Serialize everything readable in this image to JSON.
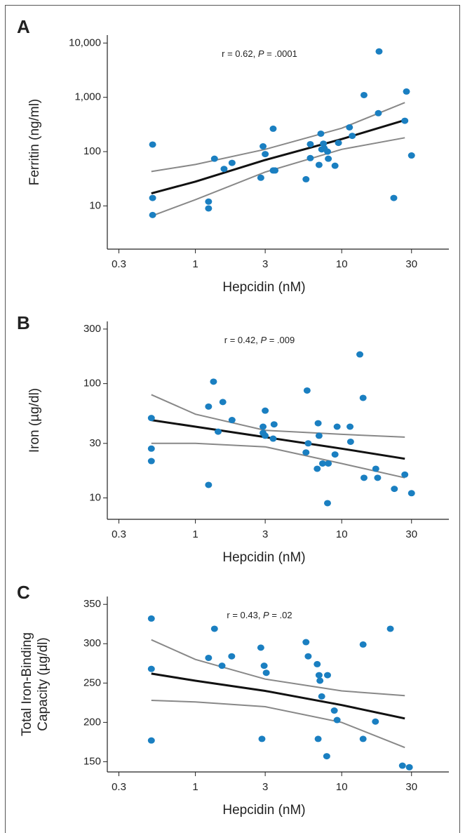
{
  "chart_data": [
    {
      "type": "scatter",
      "panel": "A",
      "annotation": [
        "r = 0.62, ",
        "P",
        " = .0001"
      ],
      "xlabel": "Hepcidin (nM)",
      "ylabel": [
        "Ferritin (ng/ml)"
      ],
      "xlog": true,
      "ylog": true,
      "xlim": [
        0.25,
        54
      ],
      "ylim": [
        1.6,
        14000
      ],
      "xticks": [
        0.3,
        1,
        3,
        10,
        30
      ],
      "yticks": [
        10,
        100,
        {
          "value": 1000,
          "label": "1,000"
        },
        {
          "value": 10000,
          "label": "10,000"
        }
      ],
      "points": {
        "color": "#1a7fc1",
        "x": [
          0.51,
          0.51,
          0.51,
          1.35,
          1.23,
          1.23,
          1.57,
          1.78,
          2.9,
          3,
          3.4,
          3.4,
          3.5,
          2.8,
          5.7,
          6.1,
          6.1,
          7,
          7.2,
          7.3,
          7.5,
          7.6,
          8,
          8.1,
          9,
          9.5,
          11.3,
          11.8,
          14.2,
          18,
          17.8,
          22.7,
          27.7,
          27,
          30
        ],
        "y": [
          135,
          14,
          6.8,
          74,
          12,
          9,
          48,
          62,
          125,
          90,
          264,
          45,
          45,
          33,
          31,
          137,
          76,
          57,
          214,
          110,
          140,
          115,
          100,
          74,
          55,
          145,
          280,
          195,
          1100,
          7000,
          510,
          14,
          1280,
          370,
          85
        ]
      },
      "lines": [
        {
          "color": "#111111",
          "width": 3,
          "x": [
            0.5,
            1,
            3,
            10,
            27
          ],
          "y": [
            17,
            28,
            70,
            170,
            380
          ]
        },
        {
          "color": "#888888",
          "width": 2,
          "x": [
            0.5,
            1,
            3,
            10,
            27
          ],
          "y": [
            43,
            58,
            110,
            270,
            800
          ]
        },
        {
          "color": "#888888",
          "width": 2,
          "x": [
            0.5,
            1,
            3,
            10,
            27
          ],
          "y": [
            6.5,
            13,
            42,
            110,
            180
          ]
        }
      ]
    },
    {
      "type": "scatter",
      "panel": "B",
      "annotation": [
        "r = 0.42, ",
        "P",
        " = .009"
      ],
      "xlabel": "Hepcidin (nM)",
      "ylabel": [
        "Iron (µg/dl)"
      ],
      "xlog": true,
      "ylog": true,
      "xlim": [
        0.25,
        54
      ],
      "ylim": [
        6.5,
        350
      ],
      "xticks": [
        0.3,
        1,
        3,
        10,
        30
      ],
      "yticks": [
        10,
        30,
        100,
        300
      ],
      "points": {
        "color": "#1a7fc1",
        "x": [
          0.5,
          0.5,
          0.5,
          1.33,
          1.23,
          1.54,
          1.78,
          1.43,
          1.23,
          2.9,
          3,
          3.45,
          2.9,
          3,
          3.4,
          5.8,
          5.7,
          5.9,
          6.9,
          7,
          6.8,
          7.4,
          8.1,
          9,
          9.3,
          8,
          11.4,
          11.5,
          13.3,
          14,
          14.2,
          17.1,
          17.6,
          22.9,
          27,
          30
        ],
        "y": [
          50,
          27,
          21,
          104,
          63,
          69,
          48,
          38,
          13,
          42,
          58,
          44,
          37,
          35,
          33,
          87,
          25,
          30,
          45,
          35,
          18,
          20,
          20,
          24,
          42,
          9,
          42,
          31,
          180,
          75,
          15,
          18,
          15,
          12,
          16,
          11
        ]
      },
      "lines": [
        {
          "color": "#111111",
          "width": 3,
          "x": [
            0.5,
            1,
            3,
            10,
            27
          ],
          "y": [
            48,
            42,
            34,
            27,
            22
          ]
        },
        {
          "color": "#888888",
          "width": 2,
          "x": [
            0.5,
            1,
            3,
            10,
            27
          ],
          "y": [
            80,
            54,
            39,
            36,
            34
          ]
        },
        {
          "color": "#888888",
          "width": 2,
          "x": [
            0.5,
            1,
            3,
            10,
            27
          ],
          "y": [
            30,
            30,
            28,
            20,
            15
          ]
        }
      ]
    },
    {
      "type": "scatter",
      "panel": "C",
      "annotation": [
        "r = 0.43, ",
        "P",
        " = .02"
      ],
      "xlabel": "Hepcidin (nM)",
      "ylabel": [
        "Total Iron-Binding",
        "Capacity (µg/dl)"
      ],
      "xlog": true,
      "ylog": false,
      "xlim": [
        0.25,
        54
      ],
      "ylim": [
        137,
        360
      ],
      "xticks": [
        0.3,
        1,
        3,
        10,
        30
      ],
      "yticks": [
        150,
        200,
        250,
        300,
        350
      ],
      "points": {
        "color": "#1a7fc1",
        "x": [
          0.5,
          0.5,
          0.5,
          1.35,
          1.23,
          1.52,
          1.77,
          2.8,
          2.95,
          3.05,
          2.85,
          5.7,
          5.9,
          6.8,
          7,
          7.1,
          7.3,
          6.9,
          8,
          7.9,
          8.9,
          9.3,
          14,
          14,
          17,
          21.5,
          26,
          29
        ],
        "y": [
          332,
          268,
          177,
          319,
          282,
          272,
          284,
          295,
          272,
          263,
          179,
          302,
          284,
          274,
          260,
          253,
          233,
          179,
          260,
          157,
          215,
          203,
          299,
          179,
          201,
          319,
          145,
          143
        ]
      },
      "lines": [
        {
          "color": "#111111",
          "width": 3,
          "x": [
            0.5,
            1,
            3,
            10,
            27
          ],
          "y": [
            262,
            253,
            240,
            222,
            205
          ]
        },
        {
          "color": "#888888",
          "width": 2,
          "x": [
            0.5,
            1,
            3,
            10,
            27
          ],
          "y": [
            305,
            280,
            255,
            240,
            234
          ]
        },
        {
          "color": "#888888",
          "width": 2,
          "x": [
            0.5,
            1,
            3,
            10,
            27
          ],
          "y": [
            228,
            226,
            220,
            200,
            168
          ]
        }
      ]
    }
  ]
}
